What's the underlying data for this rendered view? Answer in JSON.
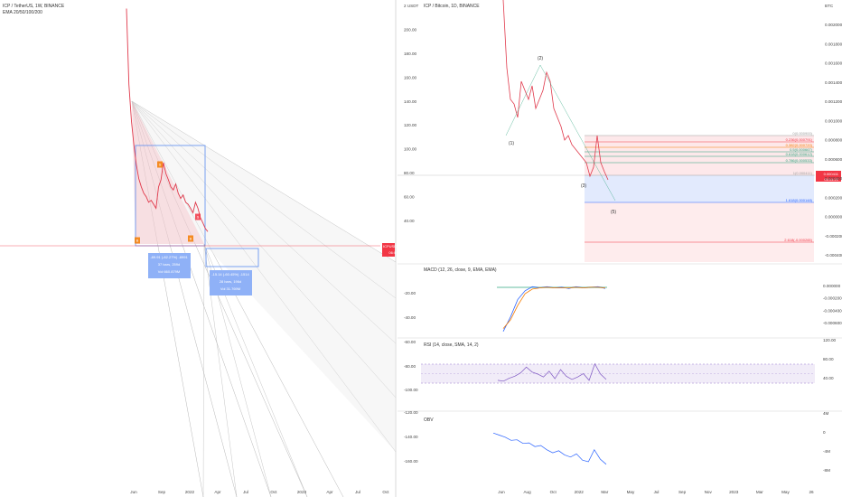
{
  "colors": {
    "price_line": "#e0394b",
    "fan": "#b8b8b8",
    "fan_fill": "#f1c9cf",
    "box_blue": "#5b8df0",
    "box_fill": "#cfdcff",
    "wave": "#26a27a",
    "fib_red": "#f6b6bc",
    "fib_blue": "#c6d6fb",
    "macd": "#2962ff",
    "signal": "#f57c00",
    "rsi": "#7e57c2",
    "obv": "#2962ff",
    "label_red": "#f23645",
    "label_green": "#089981"
  },
  "chart_data": [
    {
      "id": "left",
      "type": "line",
      "title": "ICP / TetherUS, 1W, BINANCE",
      "subtitle": "EMA 20/50/100/200",
      "x_ticks": [
        "Jun",
        "Sep",
        "2022",
        "Apr",
        "Jul",
        "Oct",
        "2023",
        "Apr",
        "Jul",
        "Oct"
      ],
      "price_label": "ICPUSDT",
      "price_value": "19.81",
      "price_time": "06:04:21",
      "measure_up": [
        "-89.91 (-82.27%) -8991",
        "37 bars, 259d",
        "Vol 660.879M"
      ],
      "measure_down": [
        "-15.14 (-60.45%) -1514",
        "28 bars, 196d",
        "Vol 31.769M"
      ],
      "markers": [
        "S",
        "B",
        "S",
        "B"
      ],
      "series": [
        {
          "name": "ICP",
          "values": [
            780,
            220,
            120,
            80,
            58,
            46,
            40,
            36,
            34,
            31,
            32,
            30,
            28,
            40,
            45,
            60,
            50,
            45,
            40,
            38,
            42,
            36,
            33,
            35,
            31,
            30,
            28,
            26,
            31,
            28,
            24,
            22,
            20,
            19
          ]
        }
      ]
    },
    {
      "id": "btc",
      "type": "line",
      "title": "ICP / Bitcoin, 1D, BINANCE",
      "left_ticks": [
        "2 USDT",
        "200.00",
        "180.00",
        "160.00",
        "140.00",
        "120.00",
        "100.00",
        "80.00",
        "60.00",
        "40.00"
      ],
      "right_ticks": [
        "BTC",
        "0.002000",
        "0.001800",
        "0.001600",
        "0.001400",
        "0.001200",
        "0.001000",
        "0.000800",
        "0.000600",
        "0.000400",
        "0.000200",
        "0.000000",
        "-0.000200",
        "-0.000400"
      ],
      "x_ticks": [
        "Jun",
        "Aug",
        "Oct",
        "2022",
        "Mar",
        "May",
        "Jul",
        "Sep",
        "Nov",
        "2023",
        "Mar",
        "May",
        "26"
      ],
      "waves": [
        "(1)",
        "(2)",
        "(3)",
        "(5)"
      ],
      "fib_levels": [
        "0(0.000900)",
        "0.236(0.000791)",
        "0.382(0.000720)",
        "0.5(0.000667)",
        "0.618(0.000612)",
        "0.786(0.000533)",
        "1(0.000411)",
        "1.618(0.000148)",
        "2.618(-0.000265)"
      ],
      "last_price": "0.000411",
      "last_time": "06:04:21",
      "series": [
        {
          "name": "ICPBTC",
          "values": [
            0.0024,
            0.00165,
            0.0013,
            0.00125,
            0.0011,
            0.0015,
            0.0014,
            0.0013,
            0.00145,
            0.0012,
            0.0013,
            0.0014,
            0.0016,
            0.0015,
            0.0012,
            0.0011,
            0.001,
            0.00085,
            0.0009,
            0.0008,
            0.00075,
            0.0007,
            0.00065,
            0.0006,
            0.00045,
            0.00055,
            0.0009,
            0.0006,
            0.0005,
            0.00041
          ]
        }
      ]
    },
    {
      "id": "macd",
      "type": "line",
      "title": "MACD (12, 26, close, 9, EMA, EMA)",
      "left_ticks": [
        "-20.00",
        "-40.00",
        "-60.00"
      ],
      "right_ticks": [
        "0.000000",
        "-0.000200",
        "-0.000400",
        "-0.000600"
      ],
      "series": [
        {
          "name": "MACD",
          "values": [
            -0.00075,
            -0.0005,
            -0.0002,
            -5e-05,
            2e-05,
            0.0,
            2e-05,
            0.0,
            1e-05,
            -1e-05,
            2e-05,
            0.0,
            1e-05,
            2e-05,
            -1e-05
          ]
        },
        {
          "name": "Signal",
          "values": [
            -0.0007,
            -0.00055,
            -0.0003,
            -0.0001,
            -2e-05,
            0.0,
            1e-05,
            0.0,
            0.0,
            0.0,
            1e-05,
            0.0,
            1e-05,
            1e-05,
            0.0
          ]
        }
      ]
    },
    {
      "id": "rsi",
      "type": "line",
      "title": "RSI (14, close, SMA, 14, 2)",
      "left_ticks": [
        "-80.00",
        "-100.00"
      ],
      "right_ticks": [
        "120.00",
        "80.00",
        "40.00"
      ],
      "series": [
        {
          "name": "RSI",
          "values": [
            40,
            38,
            45,
            50,
            58,
            72,
            60,
            55,
            48,
            62,
            44,
            66,
            50,
            42,
            48,
            56,
            40,
            80,
            55,
            42
          ]
        }
      ]
    },
    {
      "id": "obv",
      "type": "line",
      "title": "OBV",
      "left_ticks": [
        "-120.00",
        "-140.00",
        "-160.00"
      ],
      "right_ticks": [
        "4M",
        "0",
        "-4M",
        "-8M"
      ],
      "series": [
        {
          "name": "OBV",
          "values": [
            1.0,
            0.6,
            0.2,
            -0.4,
            -0.3,
            -1.0,
            -0.9,
            -1.6,
            -1.4,
            -2.2,
            -2.8,
            -2.4,
            -3.2,
            -3.6,
            -3.0,
            -4.2,
            -4.5,
            -2.2,
            -4.0,
            -5.0
          ]
        }
      ]
    }
  ]
}
